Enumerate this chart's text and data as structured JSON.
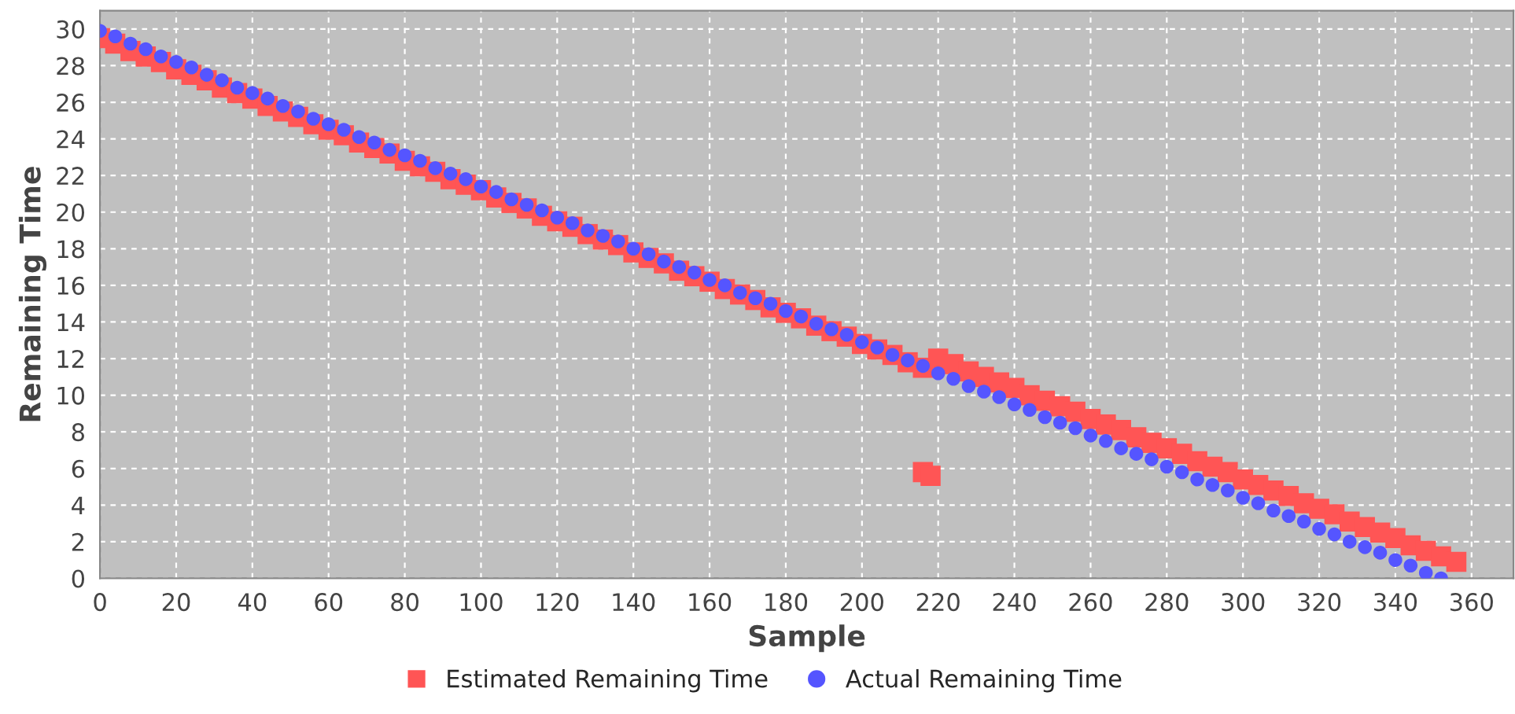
{
  "chart_data": {
    "type": "scatter",
    "xlabel": "Sample",
    "ylabel": "Remaining Time",
    "xlim": [
      0,
      371
    ],
    "ylim": [
      0,
      31
    ],
    "xticks": [
      0,
      20,
      40,
      60,
      80,
      100,
      120,
      140,
      160,
      180,
      200,
      220,
      240,
      260,
      280,
      300,
      320,
      340,
      360
    ],
    "yticks": [
      0,
      2,
      4,
      6,
      8,
      10,
      12,
      14,
      16,
      18,
      20,
      22,
      24,
      26,
      28,
      30
    ],
    "grid": true,
    "legend": "bottom",
    "series": [
      {
        "name": "Actual Remaining Time",
        "color": "#5555ff",
        "marker": "circle",
        "x": [
          0,
          4,
          8,
          12,
          16,
          20,
          24,
          28,
          32,
          36,
          40,
          44,
          48,
          52,
          56,
          60,
          64,
          68,
          72,
          76,
          80,
          84,
          88,
          92,
          96,
          100,
          104,
          108,
          112,
          116,
          120,
          124,
          128,
          132,
          136,
          140,
          144,
          148,
          152,
          156,
          160,
          164,
          168,
          172,
          176,
          180,
          184,
          188,
          192,
          196,
          200,
          204,
          208,
          212,
          216,
          220,
          224,
          228,
          232,
          236,
          240,
          244,
          248,
          252,
          256,
          260,
          264,
          268,
          272,
          276,
          280,
          284,
          288,
          292,
          296,
          300,
          304,
          308,
          312,
          316,
          320,
          324,
          328,
          332,
          336,
          340,
          344,
          348,
          352
        ],
        "values": [
          29.9,
          29.6,
          29.2,
          28.9,
          28.5,
          28.2,
          27.9,
          27.5,
          27.2,
          26.8,
          26.5,
          26.2,
          25.8,
          25.5,
          25.1,
          24.8,
          24.5,
          24.1,
          23.8,
          23.4,
          23.1,
          22.8,
          22.4,
          22.1,
          21.8,
          21.4,
          21.1,
          20.7,
          20.4,
          20.1,
          19.7,
          19.4,
          19.0,
          18.7,
          18.4,
          18.0,
          17.7,
          17.3,
          17.0,
          16.7,
          16.3,
          16.0,
          15.6,
          15.3,
          15.0,
          14.6,
          14.3,
          13.9,
          13.6,
          13.3,
          12.9,
          12.6,
          12.2,
          11.9,
          11.6,
          11.2,
          10.9,
          10.5,
          10.2,
          9.9,
          9.5,
          9.2,
          8.8,
          8.5,
          8.2,
          7.8,
          7.5,
          7.1,
          6.8,
          6.5,
          6.1,
          5.8,
          5.4,
          5.1,
          4.8,
          4.4,
          4.1,
          3.7,
          3.4,
          3.1,
          2.7,
          2.4,
          2.0,
          1.7,
          1.4,
          1.0,
          0.7,
          0.3,
          0.0
        ]
      },
      {
        "name": "Estimated Remaining Time",
        "color": "#ff5555",
        "marker": "square",
        "x": [
          0,
          4,
          8,
          12,
          16,
          20,
          24,
          28,
          32,
          36,
          40,
          44,
          48,
          52,
          56,
          60,
          64,
          68,
          72,
          76,
          80,
          84,
          88,
          92,
          96,
          100,
          104,
          108,
          112,
          116,
          120,
          124,
          128,
          132,
          136,
          140,
          144,
          148,
          152,
          156,
          160,
          164,
          168,
          172,
          176,
          180,
          184,
          188,
          192,
          196,
          200,
          204,
          208,
          212,
          216,
          216,
          218,
          220,
          224,
          228,
          232,
          236,
          240,
          244,
          248,
          252,
          256,
          260,
          264,
          268,
          272,
          276,
          280,
          284,
          288,
          292,
          296,
          300,
          304,
          308,
          312,
          316,
          320,
          324,
          328,
          332,
          336,
          340,
          344,
          348,
          352,
          356
        ],
        "values": [
          29.5,
          29.2,
          28.8,
          28.5,
          28.2,
          27.8,
          27.5,
          27.2,
          26.8,
          26.5,
          26.2,
          25.8,
          25.5,
          25.2,
          24.8,
          24.5,
          24.2,
          23.8,
          23.5,
          23.2,
          22.8,
          22.5,
          22.2,
          21.8,
          21.5,
          21.2,
          20.8,
          20.5,
          20.2,
          19.8,
          19.5,
          19.2,
          18.8,
          18.5,
          18.2,
          17.8,
          17.5,
          17.2,
          16.8,
          16.5,
          16.2,
          15.8,
          15.5,
          15.2,
          14.8,
          14.5,
          14.2,
          13.8,
          13.5,
          13.2,
          12.8,
          12.5,
          12.2,
          11.8,
          11.5,
          5.8,
          5.6,
          12.0,
          11.7,
          11.3,
          11.0,
          10.7,
          10.4,
          10.0,
          9.7,
          9.4,
          9.1,
          8.7,
          8.4,
          8.1,
          7.7,
          7.4,
          7.1,
          6.8,
          6.4,
          6.1,
          5.8,
          5.4,
          5.1,
          4.8,
          4.5,
          4.1,
          3.8,
          3.5,
          3.1,
          2.8,
          2.5,
          2.2,
          1.8,
          1.5,
          1.2,
          0.9
        ]
      }
    ]
  }
}
